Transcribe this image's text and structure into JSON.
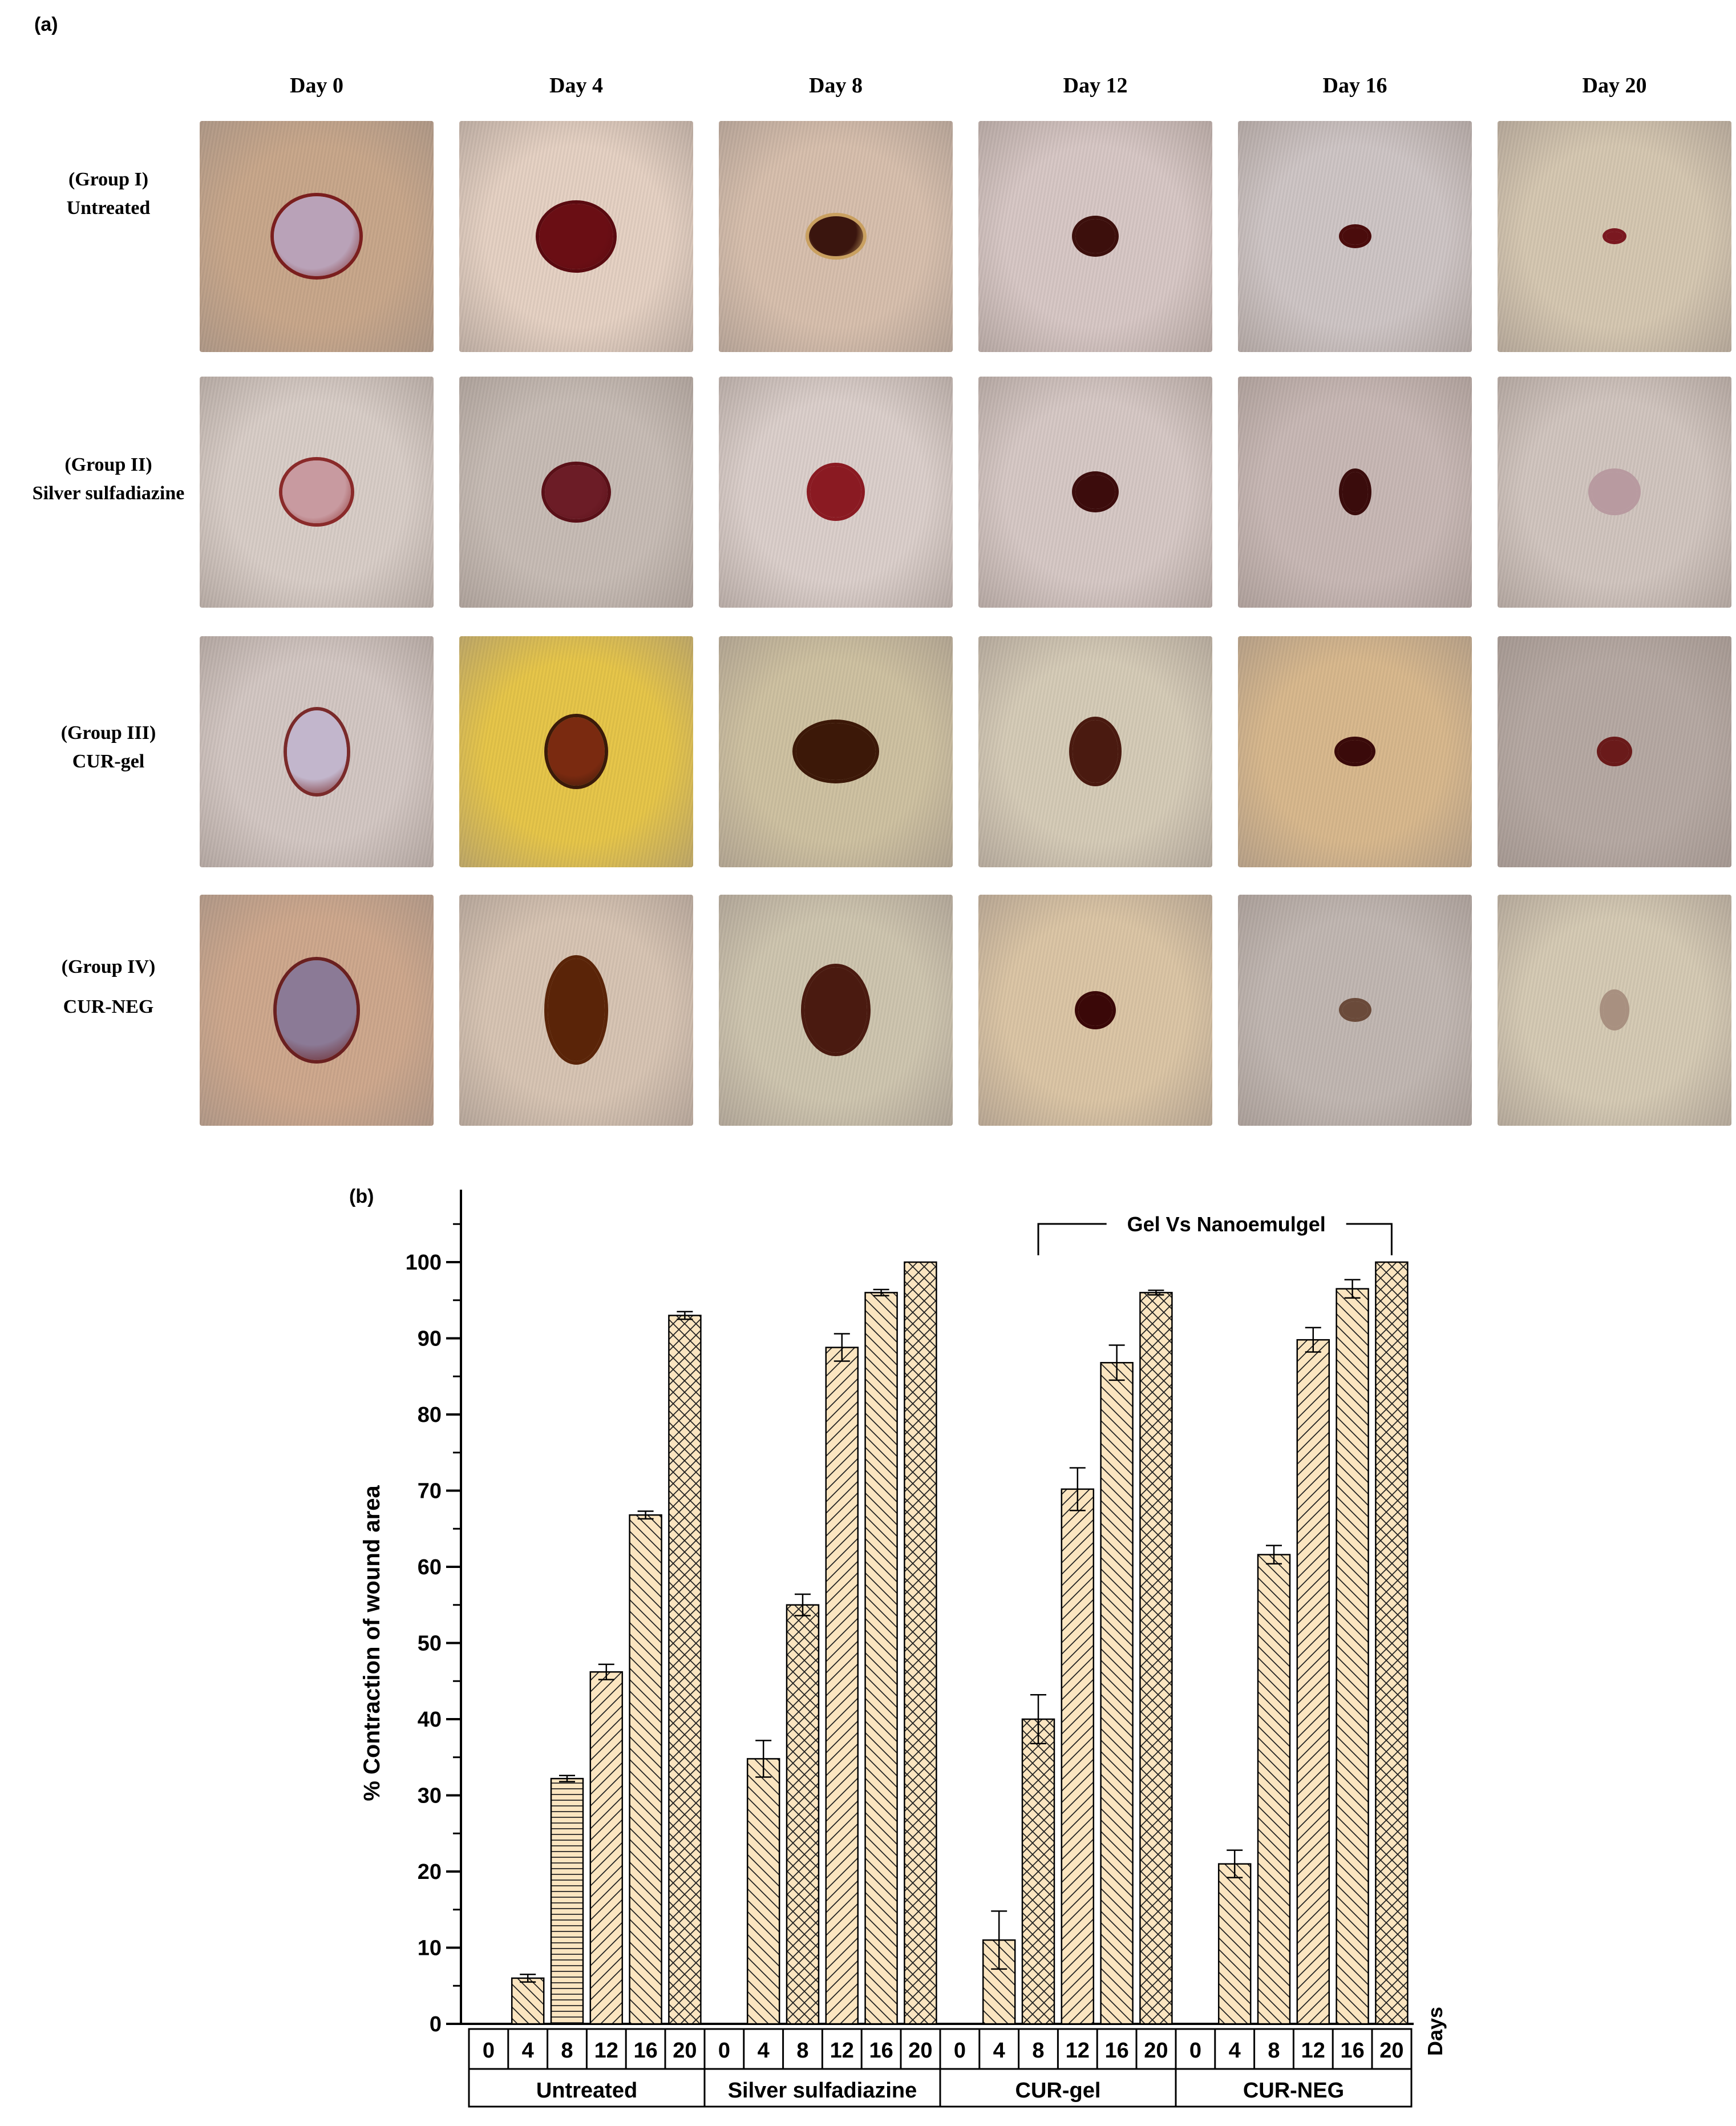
{
  "panel_a": {
    "label": "(a)",
    "day_headers": [
      "Day 0",
      "Day 4",
      "Day 8",
      "Day 12",
      "Day 16",
      "Day 20"
    ],
    "groups": [
      {
        "line1": "(Group I)",
        "line2": "Untreated"
      },
      {
        "line1": "(Group II)",
        "line2": "Silver sulfadiazine"
      },
      {
        "line1": "(Group III)",
        "line2": "CUR-gel"
      },
      {
        "line1": "(Group IV)",
        "line2": "CUR-NEG"
      }
    ],
    "photo_description": "wound photographs"
  },
  "panel_b": {
    "label": "(b)",
    "bracket_label": "Gel Vs Nanoemulgel",
    "days_label": "Days"
  },
  "chart_data": {
    "type": "bar",
    "title": "",
    "ylabel": "% Contraction of wound area",
    "xlabel": "Days",
    "ylim": [
      0,
      110
    ],
    "yticks": [
      0,
      10,
      20,
      30,
      40,
      50,
      60,
      70,
      80,
      90,
      100
    ],
    "days": [
      "0",
      "4",
      "8",
      "12",
      "16",
      "20"
    ],
    "groups": [
      "Untreated",
      "Silver sulfadiazine",
      "CUR-gel",
      "CUR-NEG"
    ],
    "series": [
      {
        "name": "Untreated",
        "values": [
          0,
          6,
          32.2,
          46.2,
          66.8,
          93
        ],
        "errors": [
          0,
          0.5,
          0.4,
          1,
          0.5,
          0.5
        ]
      },
      {
        "name": "Silver sulfadiazine",
        "values": [
          0,
          34.8,
          55,
          88.8,
          96,
          100
        ],
        "errors": [
          0,
          2.4,
          1.4,
          1.8,
          0.4,
          0
        ]
      },
      {
        "name": "CUR-gel",
        "values": [
          0,
          11,
          40,
          70.2,
          86.8,
          96
        ],
        "errors": [
          0,
          3.8,
          3.2,
          2.8,
          2.3,
          0.3
        ]
      },
      {
        "name": "CUR-NEG",
        "values": [
          0,
          21,
          61.6,
          89.8,
          96.5,
          100
        ],
        "errors": [
          0,
          1.8,
          1.2,
          1.6,
          1.2,
          0
        ]
      }
    ],
    "bar_color": "#fbe5c0",
    "comparison": {
      "label": "Gel Vs Nanoemulgel",
      "from_group": "CUR-gel",
      "from_day": "8",
      "to_group": "CUR-NEG",
      "to_day": "20"
    }
  }
}
